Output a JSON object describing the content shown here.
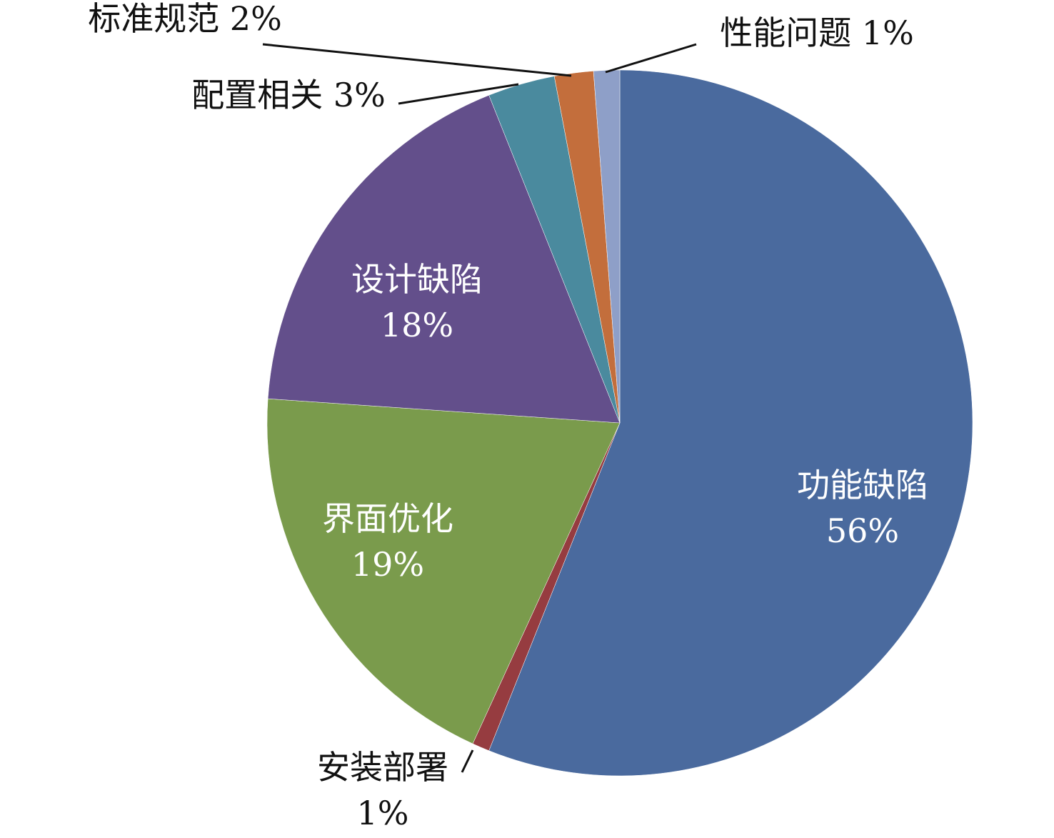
{
  "chart_data": {
    "type": "pie",
    "title": "",
    "start_angle_deg": 0,
    "direction": "clockwise",
    "legend": "none",
    "slices": [
      {
        "name": "功能缺陷",
        "value": 56.5,
        "pct_label": "56%",
        "color": "#4A6A9E",
        "label_placement": "inside"
      },
      {
        "name": "安装部署",
        "value": 0.8,
        "pct_label": "1%",
        "color": "#963C40",
        "label_placement": "outside"
      },
      {
        "name": "界面优化",
        "value": 19.4,
        "pct_label": "19%",
        "color": "#7A9B4C",
        "label_placement": "inside"
      },
      {
        "name": "设计缺陷",
        "value": 18.0,
        "pct_label": "18%",
        "color": "#634F8B",
        "label_placement": "inside"
      },
      {
        "name": "配置相关",
        "value": 3.1,
        "pct_label": "3%",
        "color": "#4A8A9E",
        "label_placement": "outside"
      },
      {
        "name": "标准规范",
        "value": 1.8,
        "pct_label": "2%",
        "color": "#C36E3C",
        "label_placement": "outside"
      },
      {
        "name": "性能问题",
        "value": 1.2,
        "pct_label": "1%",
        "color": "#8E9FC8",
        "label_placement": "outside"
      }
    ]
  }
}
